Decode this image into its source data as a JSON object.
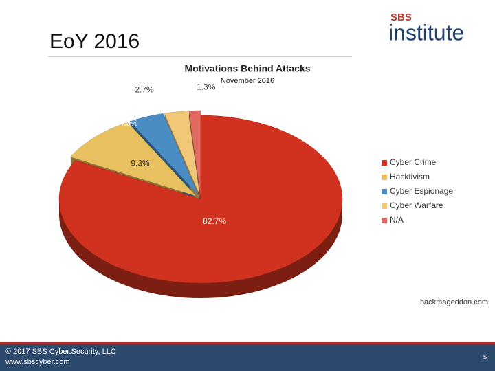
{
  "slide": {
    "title": "EoY 2016",
    "logo_small": "SBS",
    "logo_large": "institute",
    "footer_copyright": "© 2017 SBS Cyber.Security, LLC",
    "footer_url": "www.sbscyber.com",
    "page_number": "5",
    "source": "hackmageddon.com"
  },
  "chart_data": {
    "type": "pie",
    "title": "Motivations Behind Attacks",
    "subtitle": "November 2016",
    "categories": [
      "Cyber Crime",
      "Hacktivism",
      "Cyber Espionage",
      "Cyber Warfare",
      "N/A"
    ],
    "values": [
      82.7,
      9.3,
      4.0,
      2.7,
      1.3
    ],
    "value_labels": [
      "82.7%",
      "9.3%",
      "4.0%",
      "2.7%",
      "1.3%"
    ],
    "colors": [
      "#d0321f",
      "#e8c060",
      "#4a8cc4",
      "#f0c878",
      "#e06a60"
    ],
    "legend": "right"
  }
}
